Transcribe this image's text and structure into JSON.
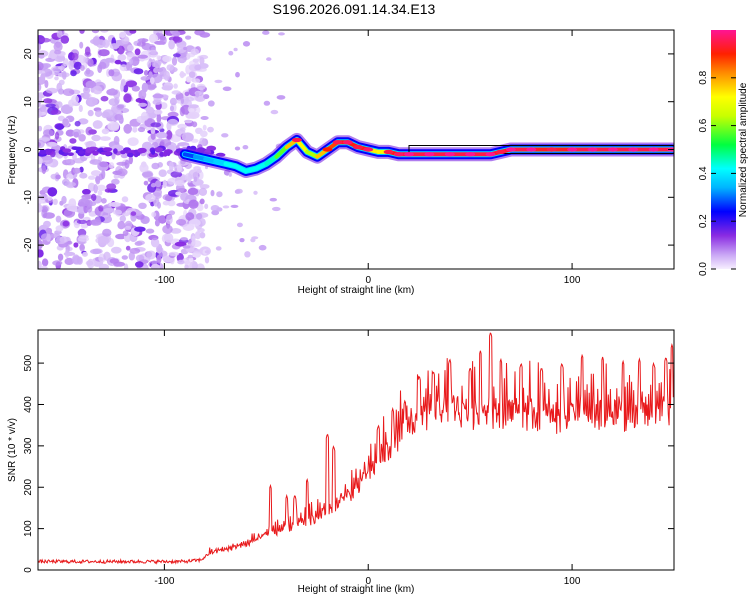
{
  "figure": {
    "title": "S196.2026.091.14.34.E13"
  },
  "chart_data": [
    {
      "type": "heatmap",
      "title": "S196.2026.091.14.34.E13",
      "xlabel": "Height of straight line (km)",
      "ylabel": "Frequency (Hz)",
      "xlim": [
        -162,
        150
      ],
      "ylim": [
        -25,
        25
      ],
      "x_ticks": [
        -100,
        0,
        100
      ],
      "x_tick_labels": [
        "-100",
        "0",
        "100"
      ],
      "y_ticks": [
        -20,
        -10,
        0,
        10,
        20
      ],
      "y_tick_labels": [
        "-20",
        "-10",
        "0",
        "10",
        "20"
      ],
      "colorbar": {
        "label": "Normalized spectral amplitude",
        "range": [
          0,
          1
        ],
        "ticks": [
          0,
          0.2,
          0.4,
          0.6,
          0.8
        ],
        "tick_labels": [
          "0.0",
          "0.2",
          "0.4",
          "0.6",
          "0.8"
        ],
        "colormap": [
          "#f2e6ff",
          "#8a2be2",
          "#0000ff",
          "#00ffff",
          "#00ff00",
          "#ffff00",
          "#ff8c00",
          "#ff0000",
          "#ff1493"
        ]
      },
      "ridge": {
        "x": [
          -90,
          -85,
          -80,
          -75,
          -70,
          -65,
          -60,
          -55,
          -50,
          -45,
          -40,
          -35,
          -30,
          -25,
          -20,
          -15,
          -10,
          -5,
          0,
          5,
          10,
          15,
          20,
          30,
          40,
          50,
          60,
          65,
          70,
          80,
          90,
          100,
          110,
          120,
          130,
          140,
          149
        ],
        "frequency": [
          -1,
          -1.5,
          -2,
          -2.5,
          -3,
          -3.5,
          -4.5,
          -4,
          -3,
          -1.5,
          0.5,
          2,
          -0.5,
          -1.5,
          0,
          1.5,
          1.5,
          0.5,
          0,
          -0.5,
          -0.5,
          -1,
          -1,
          -1,
          -1,
          -1,
          -1,
          -0.5,
          0,
          0,
          0,
          0,
          0,
          0,
          0,
          0,
          0
        ],
        "amplitude": [
          0.25,
          0.3,
          0.35,
          0.35,
          0.4,
          0.45,
          0.4,
          0.45,
          0.4,
          0.5,
          0.65,
          0.9,
          0.55,
          0.7,
          0.85,
          0.9,
          0.92,
          0.9,
          0.92,
          0.55,
          0.9,
          0.92,
          0.95,
          0.95,
          0.95,
          0.95,
          0.95,
          0.9,
          0.95,
          0.95,
          0.9,
          0.95,
          0.95,
          0.95,
          0.95,
          0.95,
          0.95
        ]
      },
      "noise_region_x": [
        -162,
        -80
      ]
    },
    {
      "type": "line",
      "xlabel": "Height of straight line (km)",
      "ylabel": "SNR (10 * v/v)",
      "xlim": [
        -162,
        150
      ],
      "ylim": [
        0,
        580
      ],
      "x_ticks": [
        -100,
        0,
        100
      ],
      "x_tick_labels": [
        "-100",
        "0",
        "100"
      ],
      "y_ticks": [
        0,
        100,
        200,
        300,
        400,
        500
      ],
      "y_tick_labels": [
        "0",
        "100",
        "200",
        "300",
        "400",
        "500"
      ],
      "series": [
        {
          "name": "SNR",
          "color": "#e8191b",
          "x": [
            -162,
            -140,
            -120,
            -100,
            -90,
            -82,
            -78,
            -70,
            -60,
            -50,
            -40,
            -30,
            -20,
            -10,
            0,
            10,
            20,
            30,
            40,
            50,
            60,
            70,
            80,
            90,
            100,
            110,
            120,
            130,
            140,
            150
          ],
          "baseline": [
            20,
            20,
            20,
            20,
            20,
            24,
            40,
            48,
            60,
            85,
            100,
            115,
            140,
            175,
            225,
            290,
            340,
            375,
            380,
            370,
            375,
            380,
            370,
            360,
            370,
            370,
            365,
            375,
            375,
            385
          ],
          "spikes": [
            {
              "x": -48,
              "y": 205
            },
            {
              "x": -40,
              "y": 180
            },
            {
              "x": -36,
              "y": 182
            },
            {
              "x": -30,
              "y": 220
            },
            {
              "x": -20,
              "y": 330
            },
            {
              "x": -17,
              "y": 300
            },
            {
              "x": 5,
              "y": 350
            },
            {
              "x": 12,
              "y": 390
            },
            {
              "x": 18,
              "y": 410
            },
            {
              "x": 25,
              "y": 470
            },
            {
              "x": 32,
              "y": 480
            },
            {
              "x": 40,
              "y": 510
            },
            {
              "x": 50,
              "y": 490
            },
            {
              "x": 55,
              "y": 530
            },
            {
              "x": 60,
              "y": 575
            },
            {
              "x": 65,
              "y": 510
            },
            {
              "x": 75,
              "y": 500
            },
            {
              "x": 85,
              "y": 490
            },
            {
              "x": 95,
              "y": 500
            },
            {
              "x": 105,
              "y": 520
            },
            {
              "x": 115,
              "y": 515
            },
            {
              "x": 125,
              "y": 505
            },
            {
              "x": 133,
              "y": 510
            },
            {
              "x": 140,
              "y": 500
            },
            {
              "x": 146,
              "y": 515
            },
            {
              "x": 149,
              "y": 545
            }
          ]
        }
      ]
    }
  ]
}
